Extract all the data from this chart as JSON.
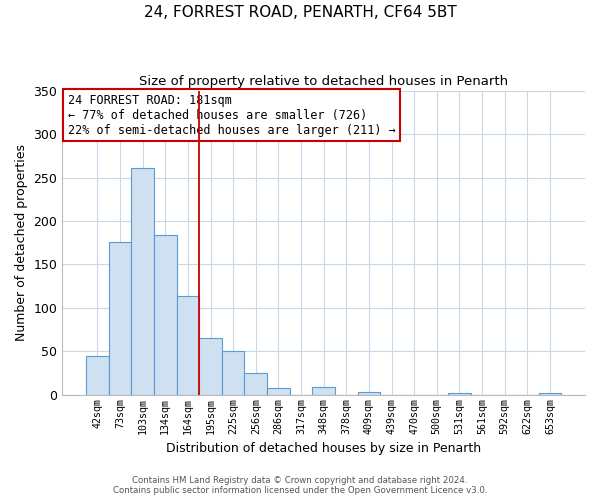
{
  "title1": "24, FORREST ROAD, PENARTH, CF64 5BT",
  "title2": "Size of property relative to detached houses in Penarth",
  "xlabel": "Distribution of detached houses by size in Penarth",
  "ylabel": "Number of detached properties",
  "bar_labels": [
    "42sqm",
    "73sqm",
    "103sqm",
    "134sqm",
    "164sqm",
    "195sqm",
    "225sqm",
    "256sqm",
    "286sqm",
    "317sqm",
    "348sqm",
    "378sqm",
    "409sqm",
    "439sqm",
    "470sqm",
    "500sqm",
    "531sqm",
    "561sqm",
    "592sqm",
    "622sqm",
    "653sqm"
  ],
  "bar_values": [
    45,
    176,
    261,
    184,
    114,
    65,
    51,
    25,
    8,
    0,
    9,
    0,
    3,
    0,
    0,
    0,
    2,
    0,
    0,
    0,
    2
  ],
  "bar_color": "#cfe0f0",
  "bar_edge_color": "#5b9bd5",
  "vline_x": 4.5,
  "vline_color": "#cc0000",
  "annotation_text": "24 FORREST ROAD: 181sqm\n← 77% of detached houses are smaller (726)\n22% of semi-detached houses are larger (211) →",
  "annotation_box_color": "#ffffff",
  "annotation_box_edge": "#cc0000",
  "ylim": [
    0,
    350
  ],
  "yticks": [
    0,
    50,
    100,
    150,
    200,
    250,
    300,
    350
  ],
  "footer_line1": "Contains HM Land Registry data © Crown copyright and database right 2024.",
  "footer_line2": "Contains public sector information licensed under the Open Government Licence v3.0.",
  "bg_color": "#ffffff",
  "grid_color": "#c8d8e8"
}
